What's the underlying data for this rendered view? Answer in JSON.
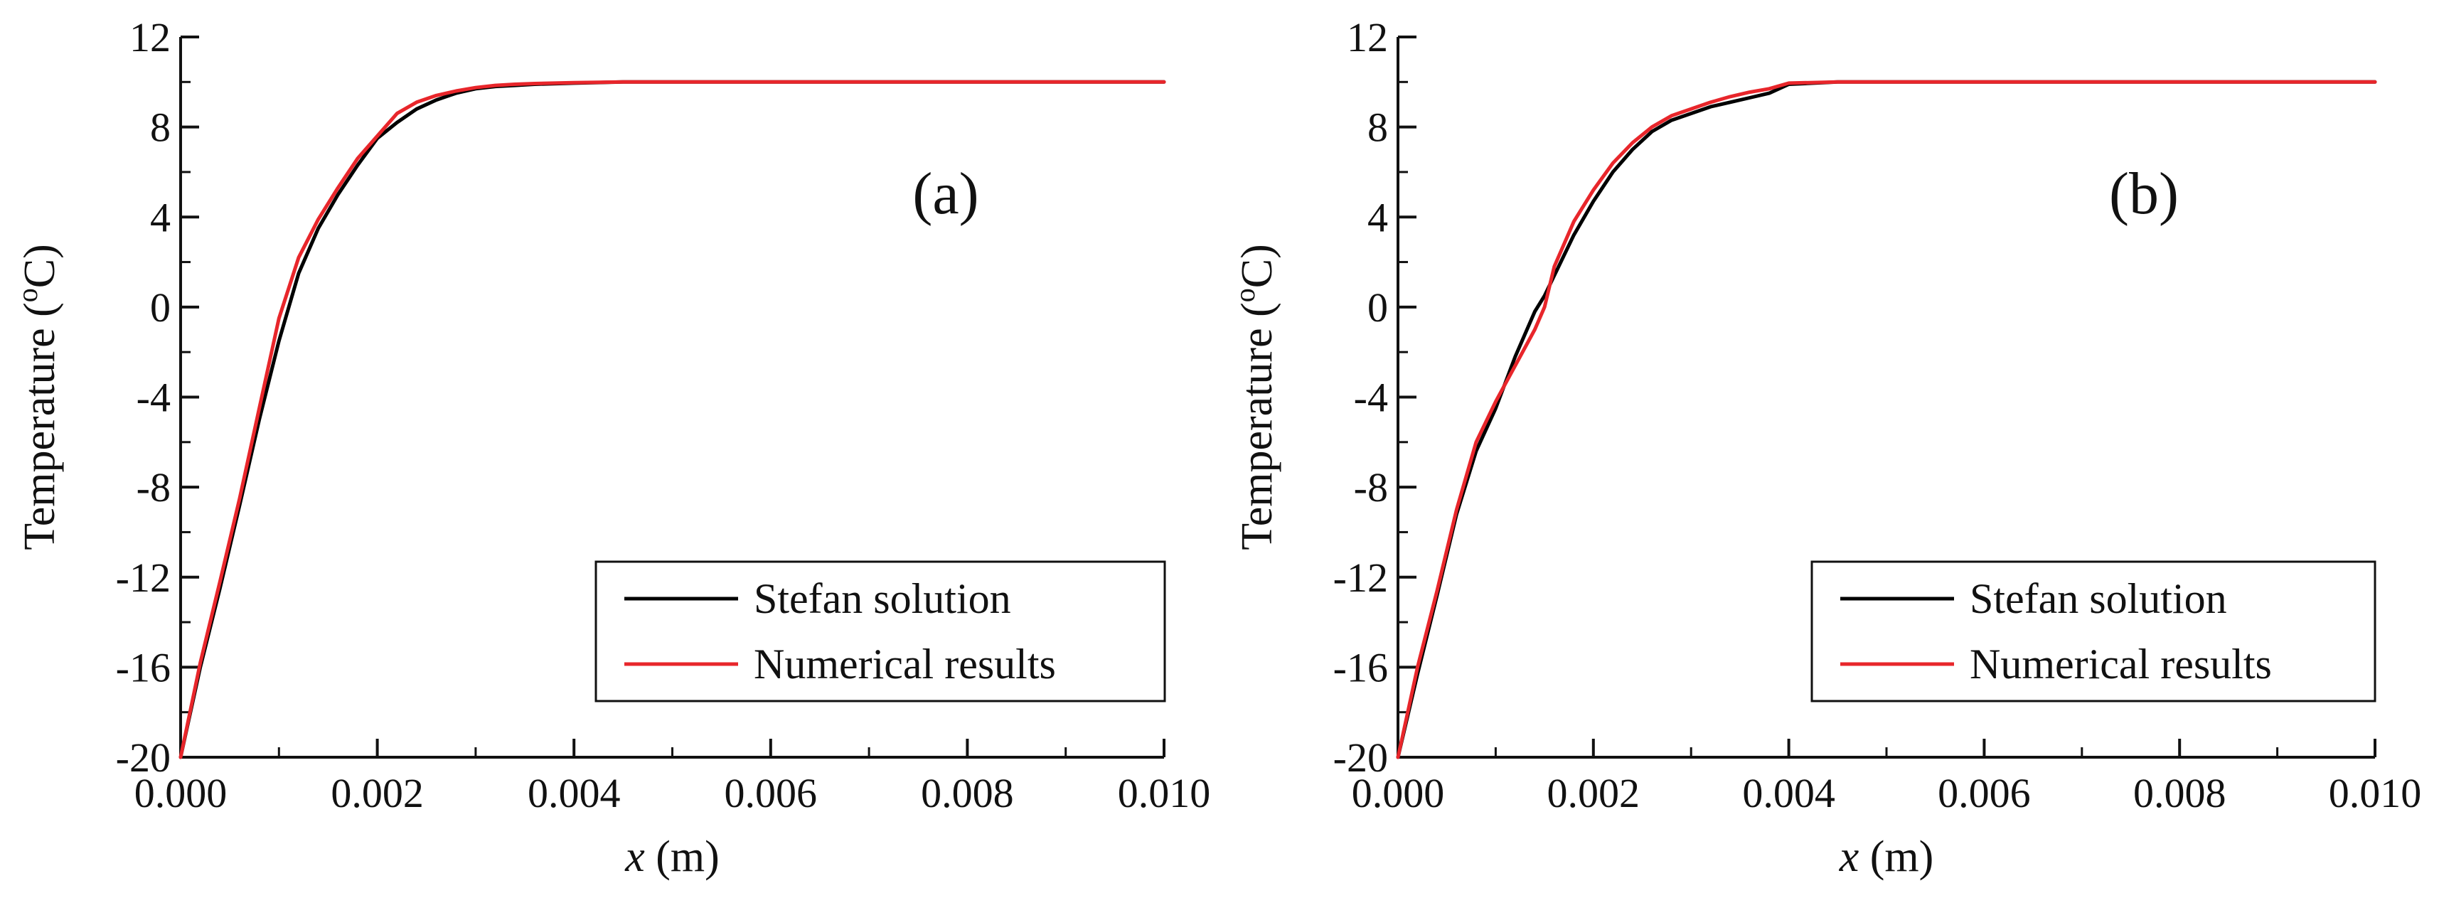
{
  "figure": {
    "series_colors": {
      "Stefan solution": "#000000",
      "Numerical results": "#e8262b"
    }
  },
  "chart_data": [
    {
      "type": "line",
      "panel_label": "(a)",
      "xlabel_var": "x",
      "xlabel_unit": " (m)",
      "ylabel": "Temperature (°C)",
      "ylabel_parts": [
        "Temperature (",
        "o",
        "C)"
      ],
      "xlim": [
        0,
        0.01
      ],
      "ylim": [
        -20,
        12
      ],
      "xticks": [
        "0.000",
        "0.002",
        "0.004",
        "0.006",
        "0.008",
        "0.010"
      ],
      "xtick_values": [
        0,
        0.002,
        0.004,
        0.006,
        0.008,
        0.01
      ],
      "yticks": [
        "-20",
        "-16",
        "-12",
        "-8",
        "-4",
        "0",
        "4",
        "8",
        "12"
      ],
      "ytick_values": [
        -20,
        -16,
        -12,
        -8,
        -4,
        0,
        4,
        8,
        12
      ],
      "legend": {
        "position": "bottom-right",
        "entries": [
          "Stefan solution",
          "Numerical results"
        ]
      },
      "series": [
        {
          "name": "Stefan solution",
          "color": "#000000",
          "x": [
            0,
            0.0002,
            0.0004,
            0.0006,
            0.0008,
            0.001,
            0.0012,
            0.0014,
            0.0016,
            0.0018,
            0.002,
            0.0022,
            0.0024,
            0.0026,
            0.0028,
            0.003,
            0.0032,
            0.0034,
            0.0036,
            0.004,
            0.0045,
            0.005,
            0.006,
            0.007,
            0.008,
            0.009,
            0.01
          ],
          "y": [
            -20,
            -16,
            -12.5,
            -8.8,
            -5,
            -1.5,
            1.5,
            3.5,
            5,
            6.3,
            7.5,
            8.2,
            8.8,
            9.2,
            9.5,
            9.7,
            9.8,
            9.85,
            9.9,
            9.95,
            10,
            10,
            10,
            10,
            10,
            10,
            10
          ]
        },
        {
          "name": "Numerical results",
          "color": "#e8262b",
          "x": [
            0,
            0.0002,
            0.0004,
            0.0006,
            0.0008,
            0.001,
            0.0012,
            0.0014,
            0.0016,
            0.0018,
            0.002,
            0.0022,
            0.0024,
            0.0026,
            0.0028,
            0.003,
            0.0032,
            0.0034,
            0.0036,
            0.004,
            0.0045,
            0.005,
            0.006,
            0.007,
            0.008,
            0.009,
            0.01
          ],
          "y": [
            -20,
            -15.8,
            -12.2,
            -8.5,
            -4.5,
            -0.5,
            2.2,
            3.9,
            5.3,
            6.6,
            7.6,
            8.6,
            9.1,
            9.4,
            9.6,
            9.75,
            9.85,
            9.9,
            9.93,
            9.97,
            10,
            10,
            10,
            10,
            10,
            10,
            10
          ]
        }
      ]
    },
    {
      "type": "line",
      "panel_label": "(b)",
      "xlabel_var": "x",
      "xlabel_unit": " (m)",
      "ylabel": "Temperature (°C)",
      "ylabel_parts": [
        "Temperature (",
        "o",
        "C)"
      ],
      "xlim": [
        0,
        0.01
      ],
      "ylim": [
        -20,
        12
      ],
      "xticks": [
        "0.000",
        "0.002",
        "0.004",
        "0.006",
        "0.008",
        "0.010"
      ],
      "xtick_values": [
        0,
        0.002,
        0.004,
        0.006,
        0.008,
        0.01
      ],
      "yticks": [
        "-20",
        "-16",
        "-12",
        "-8",
        "-4",
        "0",
        "4",
        "8",
        "12"
      ],
      "ytick_values": [
        -20,
        -16,
        -12,
        -8,
        -4,
        0,
        4,
        8,
        12
      ],
      "legend": {
        "position": "bottom-right",
        "entries": [
          "Stefan solution",
          "Numerical results"
        ]
      },
      "series": [
        {
          "name": "Stefan solution",
          "color": "#000000",
          "x": [
            0,
            0.0002,
            0.0004,
            0.0006,
            0.0008,
            0.001,
            0.0012,
            0.0014,
            0.0015,
            0.0016,
            0.0018,
            0.002,
            0.0022,
            0.0024,
            0.0026,
            0.0028,
            0.003,
            0.0032,
            0.0034,
            0.0036,
            0.0038,
            0.004,
            0.0045,
            0.005,
            0.006,
            0.007,
            0.008,
            0.009,
            0.01
          ],
          "y": [
            -20,
            -16.3,
            -12.8,
            -9.2,
            -6.4,
            -4.5,
            -2.2,
            -0.2,
            0.5,
            1.4,
            3.2,
            4.7,
            6,
            7,
            7.8,
            8.3,
            8.6,
            8.9,
            9.1,
            9.3,
            9.5,
            9.9,
            10,
            10,
            10,
            10,
            10,
            10,
            10
          ]
        },
        {
          "name": "Numerical results",
          "color": "#e8262b",
          "x": [
            0,
            0.0002,
            0.0004,
            0.0006,
            0.0008,
            0.001,
            0.0012,
            0.0014,
            0.0015,
            0.0016,
            0.0018,
            0.002,
            0.0022,
            0.0024,
            0.0026,
            0.0028,
            0.003,
            0.0032,
            0.0034,
            0.0036,
            0.0038,
            0.004,
            0.0045,
            0.005,
            0.006,
            0.007,
            0.008,
            0.009,
            0.01
          ],
          "y": [
            -20,
            -16,
            -12.6,
            -9,
            -6,
            -4.2,
            -2.6,
            -1,
            0,
            1.8,
            3.8,
            5.2,
            6.4,
            7.3,
            8,
            8.5,
            8.8,
            9.1,
            9.35,
            9.55,
            9.7,
            9.95,
            10,
            10,
            10,
            10,
            10,
            10,
            10
          ]
        }
      ]
    }
  ]
}
